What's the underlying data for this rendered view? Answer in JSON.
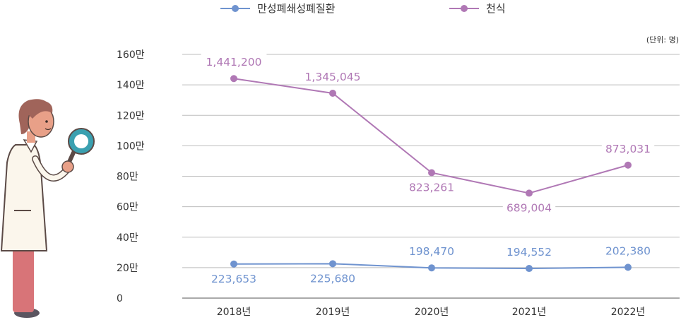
{
  "chart_data": {
    "type": "line",
    "unit": "(단위: 명)",
    "categories": [
      "2018년",
      "2019년",
      "2020년",
      "2021년",
      "2022년"
    ],
    "ylim": [
      0,
      1600000
    ],
    "yticks": [
      {
        "value": 0,
        "label": "0"
      },
      {
        "value": 200000,
        "label": "20만"
      },
      {
        "value": 400000,
        "label": "40만"
      },
      {
        "value": 600000,
        "label": "60만"
      },
      {
        "value": 800000,
        "label": "80만"
      },
      {
        "value": 1000000,
        "label": "100만"
      },
      {
        "value": 1200000,
        "label": "120만"
      },
      {
        "value": 1400000,
        "label": "140만"
      },
      {
        "value": 1600000,
        "label": "160만"
      }
    ],
    "grid": true,
    "legend_position": "top",
    "series": [
      {
        "name": "만성폐쇄성폐질환",
        "color": "#6f93cf",
        "values": [
          223653,
          225680,
          198470,
          194552,
          202380
        ],
        "labels": [
          "223,653",
          "225,680",
          "198,470",
          "194,552",
          "202,380"
        ],
        "label_side": [
          "below",
          "below",
          "above",
          "above",
          "above"
        ]
      },
      {
        "name": "천식",
        "color": "#b078b5",
        "values": [
          1441200,
          1345045,
          823261,
          689004,
          873031
        ],
        "labels": [
          "1,441,200",
          "1,345,045",
          "823,261",
          "689,004",
          "873,031"
        ],
        "label_side": [
          "above",
          "above",
          "below",
          "below",
          "above"
        ]
      }
    ]
  },
  "illustration": {
    "icon": "doctor-with-magnifier-icon",
    "colors": {
      "skin": "#e8a088",
      "hair": "#a0645a",
      "coat": "#fbf6ec",
      "pants": "#d87478",
      "lens": "#3aa0b0"
    }
  }
}
